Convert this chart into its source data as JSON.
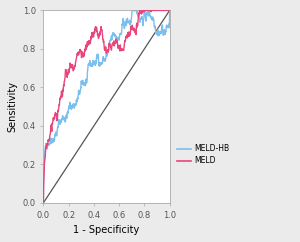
{
  "title": "",
  "xlabel": "1 - Specificity",
  "ylabel": "Sensitivity",
  "xlim": [
    0.0,
    1.0
  ],
  "ylim": [
    0.0,
    1.0
  ],
  "xticks": [
    0.0,
    0.2,
    0.4,
    0.6,
    0.8,
    1.0
  ],
  "yticks": [
    0.0,
    0.2,
    0.4,
    0.6,
    0.8,
    1.0
  ],
  "meld_hb_color": "#7bbfee",
  "meld_color": "#e8457a",
  "diag_color": "#555555",
  "legend_labels": [
    "MELD-HB",
    "MELD"
  ],
  "background_color": "#ebebeb",
  "linewidth": 1.0,
  "diag_linewidth": 0.9,
  "tick_fontsize": 6,
  "label_fontsize": 7,
  "legend_fontsize": 5.5,
  "figsize": [
    3.0,
    2.42
  ],
  "dpi": 100
}
